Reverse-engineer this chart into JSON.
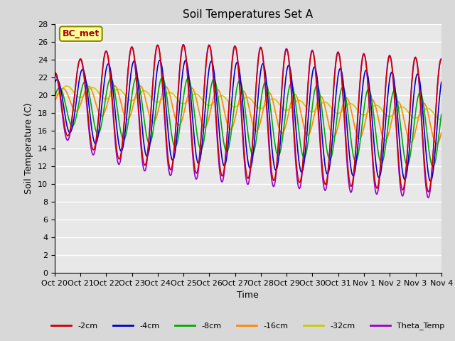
{
  "title": "Soil Temperatures Set A",
  "xlabel": "Time",
  "ylabel": "Soil Temperature (C)",
  "ylim": [
    0,
    28
  ],
  "yticks": [
    0,
    2,
    4,
    6,
    8,
    10,
    12,
    14,
    16,
    18,
    20,
    22,
    24,
    26,
    28
  ],
  "xtick_labels": [
    "Oct 20",
    "Oct 21",
    "Oct 22",
    "Oct 23",
    "Oct 24",
    "Oct 25",
    "Oct 26",
    "Oct 27",
    "Oct 28",
    "Oct 29",
    "Oct 30",
    "Oct 31",
    "Nov 1",
    "Nov 2",
    "Nov 3",
    "Nov 4"
  ],
  "series_order": [
    "-2cm",
    "-4cm",
    "-8cm",
    "-16cm",
    "-32cm",
    "Theta_Temp"
  ],
  "series": {
    "-2cm": {
      "color": "#cc0000",
      "lw": 1.2
    },
    "-4cm": {
      "color": "#0000cc",
      "lw": 1.2
    },
    "-8cm": {
      "color": "#00aa00",
      "lw": 1.2
    },
    "-16cm": {
      "color": "#ff8800",
      "lw": 1.2
    },
    "-32cm": {
      "color": "#cccc00",
      "lw": 1.2
    },
    "Theta_Temp": {
      "color": "#9900cc",
      "lw": 1.2
    }
  },
  "annotation_text": "BC_met",
  "annotation_color": "#aa0000",
  "annotation_bg": "#ffff99",
  "bg_color": "#d8d8d8",
  "plot_bg": "#e8e8e8",
  "n_points": 720,
  "days": 15
}
